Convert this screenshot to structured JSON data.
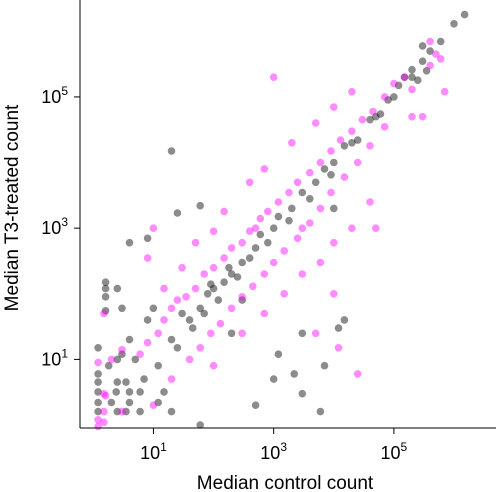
{
  "chart_data": {
    "type": "scatter",
    "title": "",
    "xlabel": "Median control count",
    "ylabel": "Median T3-treated count",
    "x_scale": "log10",
    "y_scale": "log10",
    "xlim": [
      0.6,
      5000000
    ],
    "ylim": [
      0.9,
      3000000
    ],
    "x_ticks": [
      {
        "value": 10,
        "base": "10",
        "exp": "1"
      },
      {
        "value": 1000,
        "base": "10",
        "exp": "3"
      },
      {
        "value": 100000,
        "base": "10",
        "exp": "5"
      }
    ],
    "y_ticks": [
      {
        "value": 10,
        "base": "10",
        "exp": "1"
      },
      {
        "value": 1000,
        "base": "10",
        "exp": "3"
      },
      {
        "value": 100000,
        "base": "10",
        "exp": "5"
      }
    ],
    "grid": false,
    "legend": "none",
    "colors": {
      "series_black": "#000000",
      "series_magenta": "#ff00ff"
    },
    "series": [
      {
        "color": "#000000",
        "opacity": 0.45,
        "points": [
          [
            1.2,
            1.6
          ],
          [
            2.5,
            1.6
          ],
          [
            3.5,
            1.6
          ],
          [
            6,
            1.6
          ],
          [
            20,
            1.6
          ],
          [
            1.2,
            2.2
          ],
          [
            2.0,
            2.2
          ],
          [
            4,
            2.2
          ],
          [
            12,
            2.2
          ],
          [
            1.2,
            3.2
          ],
          [
            2.4,
            3.2
          ],
          [
            4,
            3.2
          ],
          [
            6,
            3.2
          ],
          [
            15,
            3.2
          ],
          [
            1.2,
            4.5
          ],
          [
            2.5,
            4.5
          ],
          [
            3.5,
            4.5
          ],
          [
            1.2,
            6
          ],
          [
            1.8,
            8
          ],
          [
            2.5,
            10
          ],
          [
            3,
            12
          ],
          [
            1.2,
            15
          ],
          [
            4,
            20
          ],
          [
            8,
            40
          ],
          [
            10,
            60
          ],
          [
            3,
            60
          ],
          [
            1.6,
            55
          ],
          [
            1.6,
            90
          ],
          [
            1.6,
            120
          ],
          [
            2.5,
            120
          ],
          [
            1.6,
            150
          ],
          [
            20,
            20
          ],
          [
            40,
            40
          ],
          [
            60,
            60
          ],
          [
            80,
            100
          ],
          [
            100,
            120
          ],
          [
            150,
            150
          ],
          [
            200,
            200
          ],
          [
            300,
            300
          ],
          [
            500,
            500
          ],
          [
            1000,
            1000
          ],
          [
            2000,
            2000
          ],
          [
            5000,
            5000
          ],
          [
            10000,
            10000
          ],
          [
            20000,
            20000
          ],
          [
            50000,
            50000
          ],
          [
            100000,
            100000
          ],
          [
            5,
            10
          ],
          [
            7,
            5
          ],
          [
            12,
            8
          ],
          [
            25,
            15
          ],
          [
            30,
            50
          ],
          [
            45,
            30
          ],
          [
            70,
            50
          ],
          [
            90,
            140
          ],
          [
            120,
            80
          ],
          [
            180,
            250
          ],
          [
            250,
            180
          ],
          [
            400,
            350
          ],
          [
            600,
            800
          ],
          [
            800,
            600
          ],
          [
            1200,
            1500
          ],
          [
            1800,
            1300
          ],
          [
            3000,
            3500
          ],
          [
            4000,
            2800
          ],
          [
            7000,
            8000
          ],
          [
            9000,
            6500
          ],
          [
            15000,
            18000
          ],
          [
            25000,
            22000
          ],
          [
            40000,
            45000
          ],
          [
            60000,
            55000
          ],
          [
            80000,
            90000
          ],
          [
            150000,
            200000
          ],
          [
            200000,
            260000
          ],
          [
            300000,
            350000
          ],
          [
            400000,
            500000
          ],
          [
            600000,
            700000
          ],
          [
            1000000,
            1300000
          ],
          [
            1500000,
            1800000
          ],
          [
            20,
            15000
          ],
          [
            60,
            2200
          ],
          [
            8,
            700
          ],
          [
            4,
            600
          ],
          [
            25,
            1700
          ],
          [
            2200,
            6
          ],
          [
            15000,
            40
          ],
          [
            3000,
            25
          ],
          [
            7000,
            8
          ],
          [
            10000,
            2000
          ],
          [
            12000,
            30
          ],
          [
            6000,
            1.6
          ],
          [
            1200,
            12
          ],
          [
            60,
            1
          ],
          [
            200,
            25
          ],
          [
            300,
            80
          ],
          [
            3000,
            3
          ],
          [
            1000,
            5
          ],
          [
            500,
            2
          ],
          [
            200000,
            200000
          ],
          [
            250000,
            180000
          ],
          [
            120000,
            150000
          ],
          [
            300000,
            600000
          ],
          [
            350000,
            250000
          ]
        ]
      },
      {
        "color": "#ff00ff",
        "opacity": 0.45,
        "points": [
          [
            1.2,
            1.2
          ],
          [
            1.6,
            2.8
          ],
          [
            3,
            1.6
          ],
          [
            1.2,
            9
          ],
          [
            2,
            10
          ],
          [
            3,
            14
          ],
          [
            6,
            12
          ],
          [
            8,
            18
          ],
          [
            12,
            25
          ],
          [
            15,
            40
          ],
          [
            20,
            60
          ],
          [
            25,
            80
          ],
          [
            35,
            90
          ],
          [
            50,
            120
          ],
          [
            70,
            200
          ],
          [
            100,
            250
          ],
          [
            150,
            350
          ],
          [
            200,
            500
          ],
          [
            300,
            600
          ],
          [
            400,
            900
          ],
          [
            600,
            1400
          ],
          [
            800,
            1800
          ],
          [
            1200,
            2500
          ],
          [
            1800,
            3500
          ],
          [
            2500,
            5000
          ],
          [
            4000,
            7000
          ],
          [
            6000,
            10000
          ],
          [
            9000,
            15000
          ],
          [
            13000,
            22000
          ],
          [
            20000,
            30000
          ],
          [
            30000,
            45000
          ],
          [
            45000,
            60000
          ],
          [
            70000,
            100000
          ],
          [
            100000,
            160000
          ],
          [
            150000,
            200000
          ],
          [
            10,
            2
          ],
          [
            20,
            5
          ],
          [
            40,
            10
          ],
          [
            60,
            15
          ],
          [
            90,
            25
          ],
          [
            130,
            35
          ],
          [
            200,
            60
          ],
          [
            300,
            90
          ],
          [
            450,
            130
          ],
          [
            700,
            200
          ],
          [
            1000,
            300
          ],
          [
            1500,
            450
          ],
          [
            2500,
            700
          ],
          [
            4000,
            1200
          ],
          [
            6000,
            2000
          ],
          [
            9000,
            3500
          ],
          [
            15000,
            6000
          ],
          [
            25000,
            10000
          ],
          [
            40000,
            18000
          ],
          [
            70000,
            35000
          ],
          [
            30,
            250
          ],
          [
            15,
            120
          ],
          [
            8,
            350
          ],
          [
            50,
            600
          ],
          [
            100,
            900
          ],
          [
            150,
            1800
          ],
          [
            400,
            5000
          ],
          [
            700,
            8000
          ],
          [
            2000,
            20000
          ],
          [
            5000,
            40000
          ],
          [
            10000,
            70000
          ],
          [
            20000,
            120000
          ],
          [
            100,
            8
          ],
          [
            300,
            25
          ],
          [
            700,
            50
          ],
          [
            1500,
            100
          ],
          [
            3000,
            200
          ],
          [
            6000,
            300
          ],
          [
            10000,
            600
          ],
          [
            20000,
            1000
          ],
          [
            40000,
            2500
          ],
          [
            10,
            1000
          ],
          [
            500,
            1000
          ],
          [
            1000,
            200000
          ],
          [
            300000,
            50000
          ],
          [
            200000,
            130000
          ],
          [
            400000,
            300000
          ],
          [
            600000,
            380000
          ],
          [
            500000,
            450000
          ],
          [
            700000,
            120000
          ],
          [
            400000,
            700000
          ],
          [
            200000,
            50000
          ],
          [
            50000,
            1000
          ],
          [
            10000,
            100
          ],
          [
            3000,
            1000
          ],
          [
            5000,
            25
          ],
          [
            25000,
            6
          ],
          [
            12000,
            15
          ],
          [
            1.5,
            1.6
          ],
          [
            1.5,
            3
          ],
          [
            1.5,
            50
          ],
          [
            1.5,
            1.1
          ],
          [
            1.2,
            0.95
          ]
        ]
      }
    ]
  }
}
